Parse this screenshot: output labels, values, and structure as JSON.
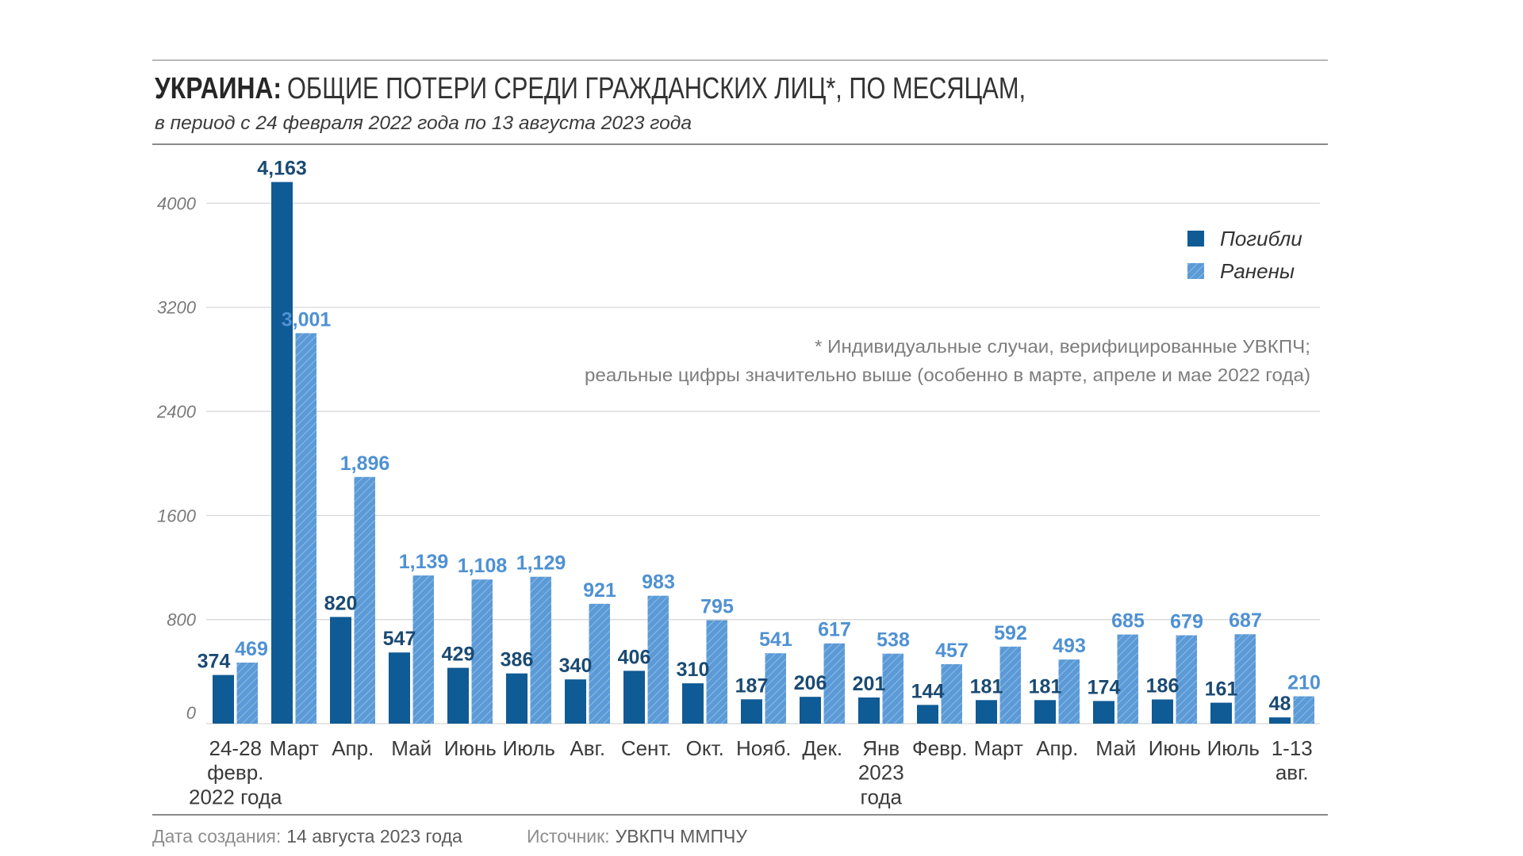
{
  "title": {
    "lead": "УКРАИНА:",
    "main": "ОБЩИЕ ПОТЕРИ СРЕДИ ГРАЖДАНСКИХ ЛИЦ*, ПО МЕСЯЦАМ,"
  },
  "subtitle": "в период с 24 февраля 2022 года по 13 августа 2023 года",
  "note": {
    "line1": "* Индивидуальные случаи, верифицированные УВКПЧ;",
    "line2": "реальные цифры значительно выше (особенно в марте, апреле и мае 2022 года)"
  },
  "footer": {
    "date_label": "Дата создания:",
    "date_value": "14 августа 2023 года",
    "source_label": "Источник:",
    "source_value": "УВКПЧ ММПЧУ"
  },
  "colors": {
    "killed": "#0f5b95",
    "wounded": "#5b9ad6",
    "wounded_hatch": "#8cbce8",
    "killed_label": "#1a4a73",
    "wounded_label": "#4f91d3",
    "grid": "#d8d8d8",
    "axis_label": "#7a7a7a",
    "category_label": "#3a3a3a"
  },
  "chart_data": {
    "type": "bar",
    "title": "УКРАИНА: ОБЩИЕ ПОТЕРИ СРЕДИ ГРАЖДАНСКИХ ЛИЦ*, ПО МЕСЯЦАМ,",
    "subtitle": "в период с 24 февраля 2022 года по 13 августа 2023 года",
    "xlabel": "",
    "ylabel": "",
    "ylim": [
      0,
      4000
    ],
    "yticks": [
      0,
      800,
      1600,
      2400,
      3200,
      4000
    ],
    "grid": true,
    "legend": "top-right",
    "categories": [
      [
        "24-28",
        "февр.",
        "2022 года"
      ],
      [
        "Март"
      ],
      [
        "Апр."
      ],
      [
        "Май"
      ],
      [
        "Июнь"
      ],
      [
        "Июль"
      ],
      [
        "Авг."
      ],
      [
        "Сент."
      ],
      [
        "Окт."
      ],
      [
        "Нояб."
      ],
      [
        "Дек."
      ],
      [
        "Янв",
        "2023",
        "года"
      ],
      [
        "Февр."
      ],
      [
        "Март"
      ],
      [
        "Апр."
      ],
      [
        "Май"
      ],
      [
        "Июнь"
      ],
      [
        "Июль"
      ],
      [
        "1-13",
        "авг."
      ]
    ],
    "series": [
      {
        "name": "Погибли",
        "values": [
          374,
          4163,
          820,
          547,
          429,
          386,
          340,
          406,
          310,
          187,
          206,
          201,
          144,
          181,
          181,
          174,
          186,
          161,
          48
        ]
      },
      {
        "name": "Ранены",
        "values": [
          469,
          3001,
          1896,
          1139,
          1108,
          1129,
          921,
          983,
          795,
          541,
          617,
          538,
          457,
          592,
          493,
          685,
          679,
          687,
          210
        ]
      }
    ]
  }
}
